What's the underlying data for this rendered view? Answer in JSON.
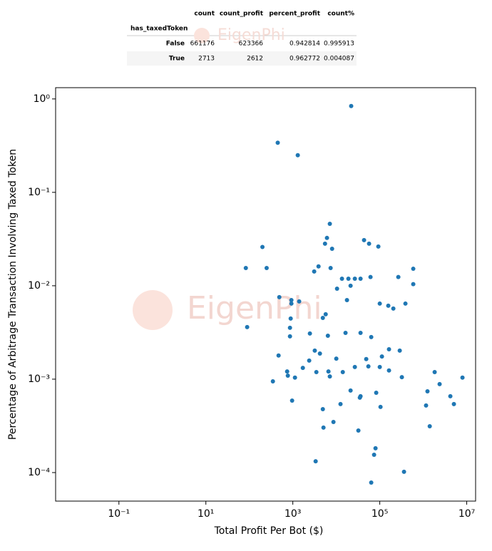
{
  "table": {
    "index_name": "has_taxedToken",
    "columns": [
      "count",
      "count_profit",
      "percent_profit",
      "count%"
    ],
    "rows": [
      {
        "label": "False",
        "cells": [
          661176,
          623366,
          0.942814,
          0.995913
        ]
      },
      {
        "label": "True",
        "cells": [
          2713,
          2612,
          0.962772,
          0.004087
        ]
      }
    ]
  },
  "watermark": "EigenPhi",
  "chart_data": {
    "type": "scatter",
    "xlabel": "Total Profit Per Bot ($)",
    "ylabel": "Percentage of Arbitrage Transaction Involving Taxed Token",
    "xscale": "log",
    "yscale": "log",
    "color": "#1f77b4",
    "xlim": [
      0.0035,
      16000000
    ],
    "ylim": [
      4.95e-05,
      1.32
    ],
    "xticks": [
      {
        "value": 0.1,
        "label": "10⁻¹"
      },
      {
        "value": 10,
        "label": "10¹"
      },
      {
        "value": 1000,
        "label": "10³"
      },
      {
        "value": 100000,
        "label": "10⁵"
      },
      {
        "value": 10000000,
        "label": "10⁷"
      }
    ],
    "yticks": [
      {
        "value": 0.0001,
        "label": "10⁻⁴"
      },
      {
        "value": 0.001,
        "label": "10⁻³"
      },
      {
        "value": 0.01,
        "label": "10⁻²"
      },
      {
        "value": 0.1,
        "label": "10⁻¹"
      },
      {
        "value": 1,
        "label": "10⁰"
      }
    ],
    "x": [
      22000,
      450,
      1300,
      200,
      83,
      250,
      7100,
      6100,
      5500,
      8000,
      43500,
      56700,
      92700,
      3900,
      3100,
      7400,
      13500,
      19000,
      26700,
      36100,
      21300,
      61200,
      10400,
      17600,
      489,
      927,
      927,
      1400,
      100000,
      157000,
      205000,
      267000,
      389000,
      589000,
      589000,
      5700,
      4900,
      89,
      893,
      860,
      860,
      2470,
      6400,
      16300,
      36100,
      63600,
      470,
      3200,
      4200,
      2380,
      10000,
      163000,
      288000,
      112000,
      48800,
      54700,
      26700,
      100000,
      163000,
      1700,
      3480,
      6600,
      740,
      768,
      1120,
      7100,
      14100,
      322000,
      1830000,
      2380000,
      348,
      21300,
      36100,
      34800,
      82800,
      1250000,
      963,
      12500,
      4900,
      104000,
      1160000,
      4200000,
      5070000,
      7980000,
      8600,
      5070,
      1410000,
      32200,
      79800,
      74000,
      3350,
      361000,
      63600
    ],
    "values": [
      0.84,
      0.34,
      0.25,
      0.026,
      0.0155,
      0.0155,
      0.046,
      0.0325,
      0.0282,
      0.0249,
      0.0308,
      0.0282,
      0.0263,
      0.0161,
      0.0142,
      0.0155,
      0.0119,
      0.0119,
      0.0119,
      0.0119,
      0.01,
      0.0124,
      0.0093,
      0.00703,
      0.00755,
      0.00703,
      0.00644,
      0.00679,
      0.00644,
      0.00611,
      0.0057,
      0.0124,
      0.00644,
      0.0152,
      0.0104,
      0.00495,
      0.00453,
      0.00361,
      0.00446,
      0.00355,
      0.00287,
      0.00308,
      0.00292,
      0.00313,
      0.00313,
      0.00282,
      0.00179,
      0.00202,
      0.00188,
      0.00158,
      0.00166,
      0.00209,
      0.00202,
      0.00175,
      0.00164,
      0.00137,
      0.00135,
      0.00135,
      0.00124,
      0.00132,
      0.00119,
      0.00121,
      0.00121,
      0.00109,
      0.00104,
      0.00107,
      0.00119,
      0.00105,
      0.00119,
      0.000885,
      0.000948,
      0.000755,
      0.000656,
      0.000634,
      0.000716,
      0.000741,
      0.00059,
      0.000541,
      0.000478,
      0.000504,
      0.000522,
      0.000656,
      0.000541,
      0.00104,
      0.000348,
      0.000303,
      0.000313,
      0.000282,
      0.000182,
      0.000155,
      0.000132,
      0.000102,
      7.82e-05
    ]
  }
}
